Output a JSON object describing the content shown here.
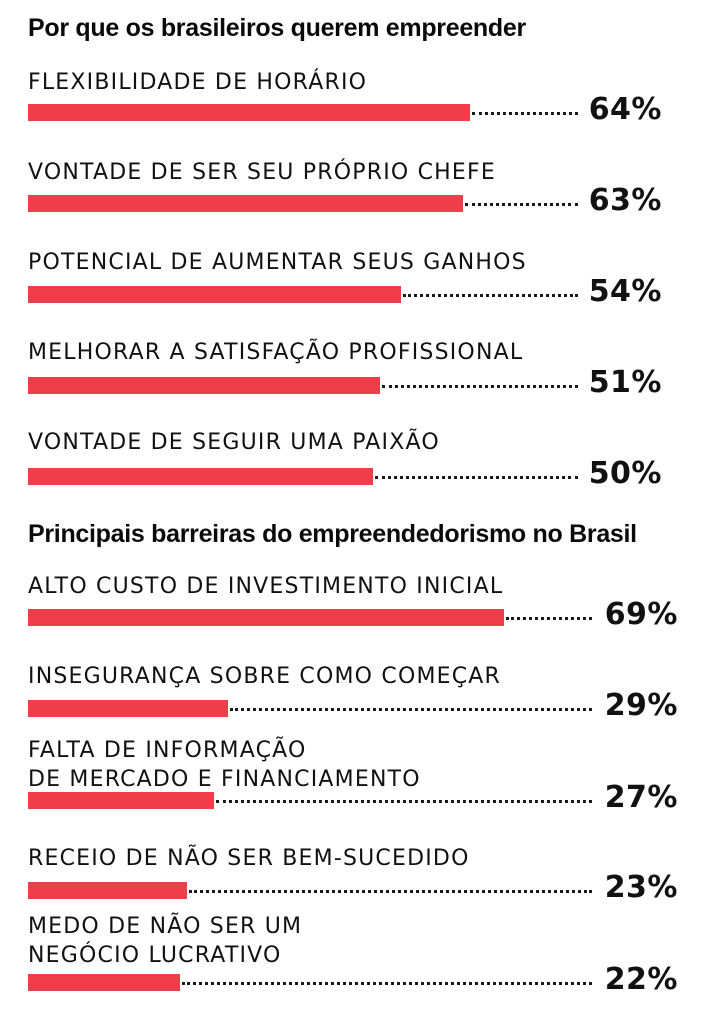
{
  "colors": {
    "bar": "#ef3d4a",
    "text": "#111111",
    "dots": "#1a1a1a"
  },
  "chart_data": [
    {
      "type": "bar",
      "orientation": "horizontal",
      "title": "Por que os brasileiros querem empreender",
      "categories": [
        "FLEXIBILIDADE DE HORÁRIO",
        "VONTADE DE SER SEU PRÓPRIO CHEFE",
        "POTENCIAL DE AUMENTAR SEUS GANHOS",
        "MELHORAR A SATISFAÇÃO PROFISSIONAL",
        "VONTADE DE SEGUIR UMA PAIXÃO"
      ],
      "values": [
        64,
        63,
        54,
        51,
        50
      ],
      "value_labels": [
        "64%",
        "63%",
        "54%",
        "51%",
        "50%"
      ]
    },
    {
      "type": "bar",
      "orientation": "horizontal",
      "title": "Principais barreiras do empreendedorismo no Brasil",
      "categories": [
        "ALTO CUSTO DE INVESTIMENTO INICIAL",
        "INSEGURANÇA SOBRE COMO COMEÇAR",
        "FALTA DE INFORMAÇÃO\nDE MERCADO E FINANCIAMENTO",
        "RECEIO DE NÃO SER BEM-SUCEDIDO",
        "MEDO DE NÃO SER UM\nNEGÓCIO LUCRATIVO"
      ],
      "values": [
        69,
        29,
        27,
        23,
        22
      ],
      "value_labels": [
        "69%",
        "29%",
        "27%",
        "23%",
        "22%"
      ]
    }
  ]
}
